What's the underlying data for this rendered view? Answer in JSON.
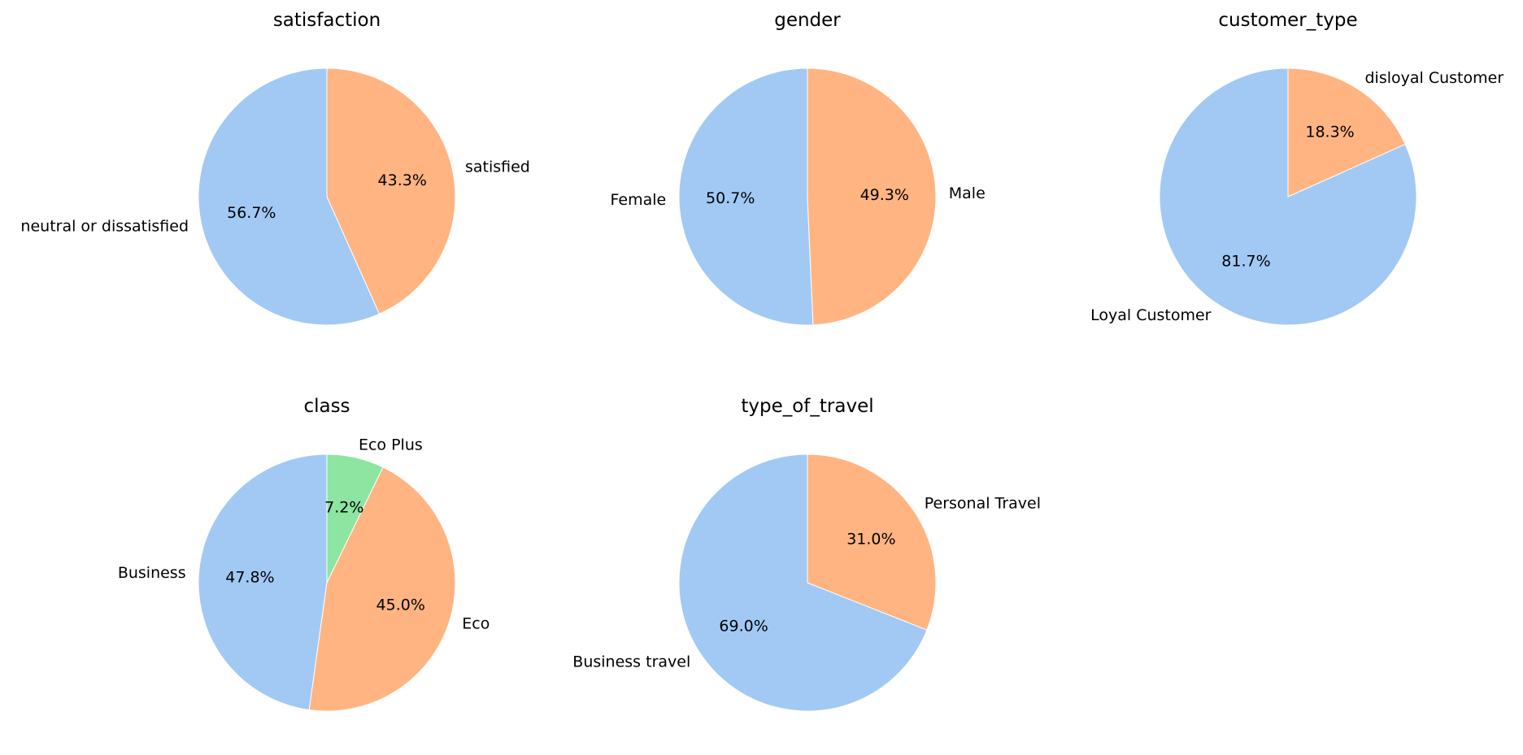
{
  "chart_data": [
    {
      "type": "pie",
      "title": "satisfaction",
      "labels": [
        "neutral or dissatisfied",
        "satisfied"
      ],
      "values": [
        56.7,
        43.3
      ],
      "value_labels": [
        "56.7%",
        "43.3%"
      ],
      "colors": [
        "#a1c9f4",
        "#ffb482"
      ],
      "start_angle": "90° (top)",
      "direction": "counterclockwise"
    },
    {
      "type": "pie",
      "title": "gender",
      "labels": [
        "Female",
        "Male"
      ],
      "values": [
        50.7,
        49.3
      ],
      "value_labels": [
        "50.7%",
        "49.3%"
      ],
      "colors": [
        "#a1c9f4",
        "#ffb482"
      ],
      "start_angle": "90° (top)",
      "direction": "counterclockwise"
    },
    {
      "type": "pie",
      "title": "customer_type",
      "labels": [
        "Loyal Customer",
        "disloyal Customer"
      ],
      "values": [
        81.7,
        18.3
      ],
      "value_labels": [
        "81.7%",
        "18.3%"
      ],
      "colors": [
        "#a1c9f4",
        "#ffb482"
      ],
      "start_angle": "90° (top)",
      "direction": "counterclockwise"
    },
    {
      "type": "pie",
      "title": "class",
      "labels": [
        "Business",
        "Eco",
        "Eco Plus"
      ],
      "values": [
        47.8,
        45.0,
        7.2
      ],
      "value_labels": [
        "47.8%",
        "45.0%",
        "7.2%"
      ],
      "colors": [
        "#a1c9f4",
        "#ffb482",
        "#8de5a1"
      ],
      "start_angle": "90° (top)",
      "direction": "counterclockwise"
    },
    {
      "type": "pie",
      "title": "type_of_travel",
      "labels": [
        "Business travel",
        "Personal Travel"
      ],
      "values": [
        69.0,
        31.0
      ],
      "value_labels": [
        "69.0%",
        "31.0%"
      ],
      "colors": [
        "#a1c9f4",
        "#ffb482"
      ],
      "start_angle": "90° (top)",
      "direction": "counterclockwise"
    }
  ]
}
